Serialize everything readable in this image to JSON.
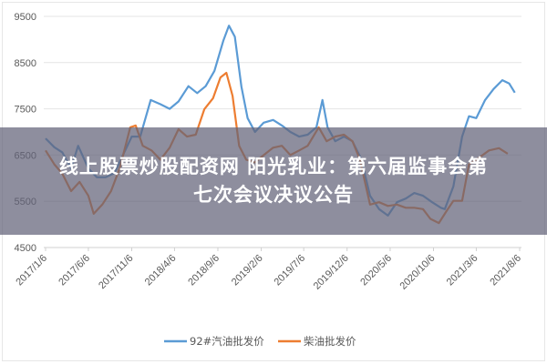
{
  "banner": {
    "line1": "线上股票炒股配资网 阳光乳业：第六届监事会第",
    "line2": "七次会议决议公告"
  },
  "chart_data": {
    "type": "line",
    "title": "",
    "xlabel": "",
    "ylabel": "",
    "ylim": [
      4500,
      9500
    ],
    "yticks": [
      "9500",
      "8500",
      "7500",
      "6500",
      "5500",
      "4500"
    ],
    "xlim": [
      "2017-01-06",
      "2021-08-06"
    ],
    "xticks": [
      "2017/1/6",
      "2017/6/6",
      "2017/11/6",
      "2018/4/6",
      "2018/9/6",
      "2019/2/6",
      "2019/7/6",
      "2019/12/6",
      "2020/5/6",
      "2020/10/6",
      "2021/3/6",
      "2021/8/6"
    ],
    "grid": true,
    "legend_position": "bottom",
    "series": [
      {
        "name": "92#汽油批发价",
        "color": "#5b9bd5",
        "points": [
          [
            "2017-01-06",
            6860
          ],
          [
            "2017-02-06",
            6670
          ],
          [
            "2017-03-06",
            6560
          ],
          [
            "2017-04-06",
            6210
          ],
          [
            "2017-05-01",
            6700
          ],
          [
            "2017-06-06",
            6210
          ],
          [
            "2017-07-06",
            6020
          ],
          [
            "2017-08-06",
            6020
          ],
          [
            "2017-09-06",
            6110
          ],
          [
            "2017-10-06",
            6500
          ],
          [
            "2017-11-06",
            6900
          ],
          [
            "2017-12-06",
            6900
          ],
          [
            "2018-01-12",
            7690
          ],
          [
            "2018-02-15",
            7600
          ],
          [
            "2018-03-20",
            7500
          ],
          [
            "2018-04-20",
            7660
          ],
          [
            "2018-05-25",
            7990
          ],
          [
            "2018-06-25",
            7840
          ],
          [
            "2018-07-25",
            7990
          ],
          [
            "2018-08-25",
            8320
          ],
          [
            "2018-09-25",
            8970
          ],
          [
            "2018-10-15",
            9300
          ],
          [
            "2018-11-05",
            9060
          ],
          [
            "2018-11-28",
            7980
          ],
          [
            "2018-12-20",
            7300
          ],
          [
            "2019-01-15",
            7000
          ],
          [
            "2019-02-15",
            7200
          ],
          [
            "2019-03-20",
            7260
          ],
          [
            "2019-04-20",
            7140
          ],
          [
            "2019-05-20",
            7000
          ],
          [
            "2019-06-20",
            6900
          ],
          [
            "2019-07-20",
            6940
          ],
          [
            "2019-08-20",
            7100
          ],
          [
            "2019-09-10",
            7690
          ],
          [
            "2019-09-28",
            7100
          ],
          [
            "2019-10-25",
            6800
          ],
          [
            "2019-11-25",
            6900
          ],
          [
            "2019-12-25",
            6800
          ],
          [
            "2020-01-25",
            6410
          ],
          [
            "2020-02-25",
            5620
          ],
          [
            "2020-03-28",
            5330
          ],
          [
            "2020-04-28",
            5190
          ],
          [
            "2020-05-30",
            5480
          ],
          [
            "2020-06-30",
            5560
          ],
          [
            "2020-07-30",
            5680
          ],
          [
            "2020-08-30",
            5620
          ],
          [
            "2020-10-01",
            5480
          ],
          [
            "2020-11-01",
            5360
          ],
          [
            "2020-11-15",
            5330
          ],
          [
            "2020-12-15",
            5820
          ],
          [
            "2021-01-15",
            6900
          ],
          [
            "2021-02-08",
            7340
          ],
          [
            "2021-03-06",
            7300
          ],
          [
            "2021-04-06",
            7690
          ],
          [
            "2021-05-06",
            7930
          ],
          [
            "2021-06-06",
            8120
          ],
          [
            "2021-06-30",
            8050
          ],
          [
            "2021-07-20",
            7850
          ]
        ]
      },
      {
        "name": "柴油批发价",
        "color": "#ed7d31",
        "points": [
          [
            "2017-01-06",
            6600
          ],
          [
            "2017-02-06",
            6300
          ],
          [
            "2017-03-06",
            6100
          ],
          [
            "2017-04-06",
            5720
          ],
          [
            "2017-05-06",
            5920
          ],
          [
            "2017-06-06",
            5620
          ],
          [
            "2017-06-25",
            5230
          ],
          [
            "2017-07-25",
            5430
          ],
          [
            "2017-08-25",
            5720
          ],
          [
            "2017-09-25",
            6220
          ],
          [
            "2017-11-01",
            7100
          ],
          [
            "2017-11-20",
            7140
          ],
          [
            "2017-12-15",
            6700
          ],
          [
            "2018-01-15",
            6600
          ],
          [
            "2018-02-15",
            6400
          ],
          [
            "2018-03-20",
            6660
          ],
          [
            "2018-04-20",
            7060
          ],
          [
            "2018-05-20",
            6900
          ],
          [
            "2018-06-20",
            6940
          ],
          [
            "2018-07-20",
            7490
          ],
          [
            "2018-08-20",
            7730
          ],
          [
            "2018-09-15",
            8180
          ],
          [
            "2018-10-06",
            8280
          ],
          [
            "2018-10-28",
            7780
          ],
          [
            "2018-11-20",
            6700
          ],
          [
            "2018-12-15",
            6400
          ],
          [
            "2019-01-15",
            6340
          ],
          [
            "2019-02-15",
            6500
          ],
          [
            "2019-03-20",
            6660
          ],
          [
            "2019-04-20",
            6700
          ],
          [
            "2019-05-20",
            6500
          ],
          [
            "2019-06-20",
            6600
          ],
          [
            "2019-07-20",
            6700
          ],
          [
            "2019-08-28",
            7100
          ],
          [
            "2019-09-25",
            6800
          ],
          [
            "2019-10-25",
            6900
          ],
          [
            "2019-11-25",
            6940
          ],
          [
            "2019-12-25",
            6800
          ],
          [
            "2020-01-20",
            6410
          ],
          [
            "2020-02-25",
            5430
          ],
          [
            "2020-03-28",
            5480
          ],
          [
            "2020-04-28",
            5400
          ],
          [
            "2020-05-30",
            5430
          ],
          [
            "2020-06-30",
            5360
          ],
          [
            "2020-07-30",
            5360
          ],
          [
            "2020-08-30",
            5330
          ],
          [
            "2020-09-25",
            5120
          ],
          [
            "2020-10-25",
            5030
          ],
          [
            "2020-11-20",
            5280
          ],
          [
            "2020-12-15",
            5510
          ],
          [
            "2021-01-15",
            5510
          ],
          [
            "2021-02-08",
            6300
          ],
          [
            "2021-03-06",
            6400
          ],
          [
            "2021-04-20",
            6600
          ],
          [
            "2021-05-25",
            6650
          ],
          [
            "2021-06-25",
            6530
          ]
        ]
      }
    ]
  }
}
